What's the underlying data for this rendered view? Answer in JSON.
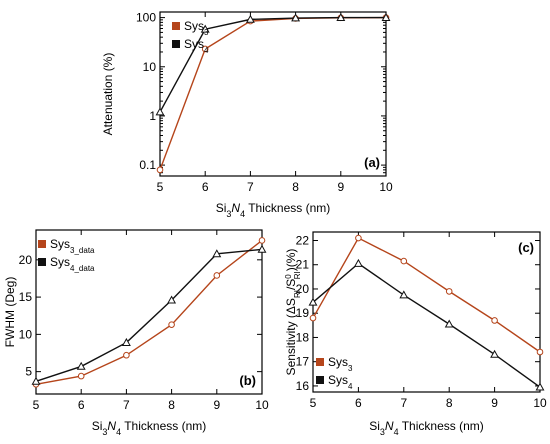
{
  "figure": {
    "panels": [
      {
        "panel_label": "(a)",
        "xlabel": "Si3N4 Thickness (nm)",
        "ylabel": "Attenuation (%)",
        "yscale": "log",
        "xticks": [
          "5",
          "6",
          "7",
          "8",
          "9",
          "10"
        ],
        "yticks": [
          "0.1",
          "1",
          "10",
          "100"
        ],
        "legend": [
          {
            "name": "Sys3",
            "main": "Sys",
            "sub": "3",
            "color": "#b5451b"
          },
          {
            "name": "Sys4",
            "main": "Sys",
            "sub": "4",
            "color": "#111111"
          }
        ]
      },
      {
        "panel_label": "(b)",
        "xlabel": "Si3N4 Thickness (nm)",
        "ylabel": "FWHM (Deg)",
        "yscale": "linear",
        "xticks": [
          "5",
          "6",
          "7",
          "8",
          "9",
          "10"
        ],
        "yticks": [
          "5",
          "10",
          "15",
          "20"
        ],
        "legend": [
          {
            "name": "Sys3_data",
            "main": "Sys",
            "sub": "3_data",
            "color": "#b5451b"
          },
          {
            "name": "Sys4_data",
            "main": "Sys",
            "sub": "4_data",
            "color": "#111111"
          }
        ]
      },
      {
        "panel_label": "(c)",
        "xlabel": "Si3N4 Thickness (nm)",
        "ylabel": "Sensitivity (ΔSRI/S0RI)(%)",
        "yscale": "linear",
        "xticks": [
          "5",
          "6",
          "7",
          "8",
          "9",
          "10"
        ],
        "yticks": [
          "16",
          "17",
          "18",
          "19",
          "20",
          "21",
          "22"
        ],
        "legend": [
          {
            "name": "Sys3",
            "main": "Sys",
            "sub": "3",
            "color": "#b5451b"
          },
          {
            "name": "Sys4",
            "main": "Sys",
            "sub": "4",
            "color": "#111111"
          }
        ]
      }
    ]
  },
  "chart_data": [
    {
      "type": "line",
      "panel": "(a)",
      "xlabel": "Si3N4 Thickness (nm)",
      "ylabel": "Attenuation (%)",
      "yscale": "log",
      "xlim": [
        5,
        10
      ],
      "ylim": [
        0.06,
        130
      ],
      "x": [
        5,
        6,
        7,
        8,
        9,
        10
      ],
      "series": [
        {
          "name": "Sys3",
          "marker": "circle",
          "color": "#b5451b",
          "values": [
            0.08,
            23,
            85,
            96,
            99,
            100
          ]
        },
        {
          "name": "Sys4",
          "marker": "triangle",
          "color": "#111111",
          "values": [
            1.2,
            58,
            92,
            98,
            100,
            100
          ]
        }
      ],
      "legend_position": "top-left",
      "grid": false
    },
    {
      "type": "line",
      "panel": "(b)",
      "xlabel": "Si3N4 Thickness (nm)",
      "ylabel": "FWHM (Deg)",
      "yscale": "linear",
      "xlim": [
        5,
        10
      ],
      "ylim": [
        2,
        24
      ],
      "x": [
        5,
        6,
        7,
        8,
        9,
        10
      ],
      "series": [
        {
          "name": "Sys3_data",
          "marker": "circle",
          "color": "#b5451b",
          "values": [
            3.3,
            4.4,
            7.2,
            11.3,
            17.9,
            22.6
          ]
        },
        {
          "name": "Sys4_data",
          "marker": "triangle",
          "color": "#111111",
          "values": [
            3.7,
            5.7,
            8.9,
            14.6,
            20.8,
            21.4
          ]
        }
      ],
      "legend_position": "top-left",
      "grid": false
    },
    {
      "type": "line",
      "panel": "(c)",
      "xlabel": "Si3N4 Thickness (nm)",
      "ylabel": "Sensitivity (ΔSRI/S0RI)(%)",
      "yscale": "linear",
      "xlim": [
        5,
        10
      ],
      "ylim": [
        15.75,
        22.35
      ],
      "x": [
        5,
        6,
        7,
        8,
        9,
        10
      ],
      "series": [
        {
          "name": "Sys3",
          "marker": "circle",
          "color": "#b5451b",
          "values": [
            18.8,
            22.1,
            21.15,
            19.9,
            18.7,
            17.4
          ]
        },
        {
          "name": "Sys4",
          "marker": "triangle",
          "color": "#111111",
          "values": [
            19.45,
            21.05,
            19.75,
            18.55,
            17.3,
            15.95
          ]
        }
      ],
      "legend_position": "bottom-left",
      "grid": false
    }
  ]
}
